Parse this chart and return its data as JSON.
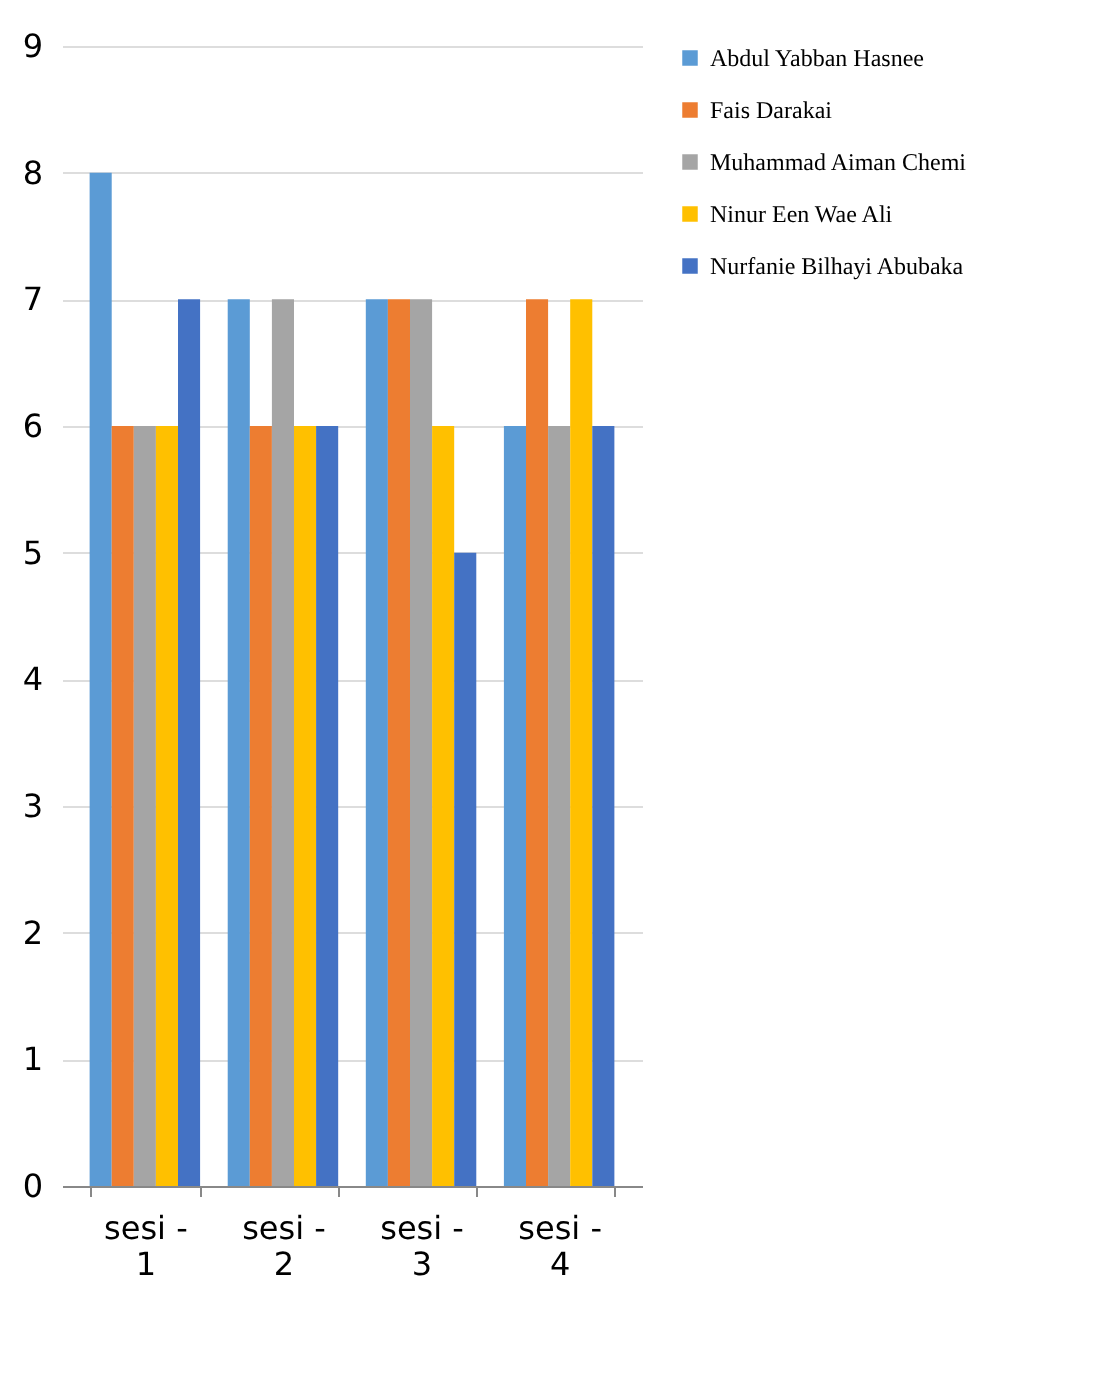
{
  "chart_data": {
    "type": "bar",
    "categories": [
      "sesi - 1",
      "sesi - 2",
      "sesi - 3",
      "sesi - 4"
    ],
    "series": [
      {
        "name": "Abdul Yabban Hasnee",
        "color": "#5b9bd5",
        "values": [
          8,
          7,
          7,
          6
        ]
      },
      {
        "name": "Fais Darakai",
        "color": "#ed7d31",
        "values": [
          6,
          6,
          7,
          7
        ]
      },
      {
        "name": "Muhammad Aiman Chemi",
        "color": "#a5a5a5",
        "values": [
          6,
          7,
          7,
          6
        ]
      },
      {
        "name": "Ninur Een Wae Ali",
        "color": "#ffc000",
        "values": [
          6,
          6,
          6,
          7
        ]
      },
      {
        "name": "Nurfanie Bilhayi Abubaka",
        "color": "#4472c4",
        "values": [
          7,
          6,
          5,
          6
        ]
      }
    ],
    "ylim": [
      0,
      9
    ],
    "yticks": [
      0,
      1,
      2,
      3,
      4,
      5,
      6,
      7,
      8,
      9
    ],
    "grid": "y",
    "legend": "right"
  }
}
